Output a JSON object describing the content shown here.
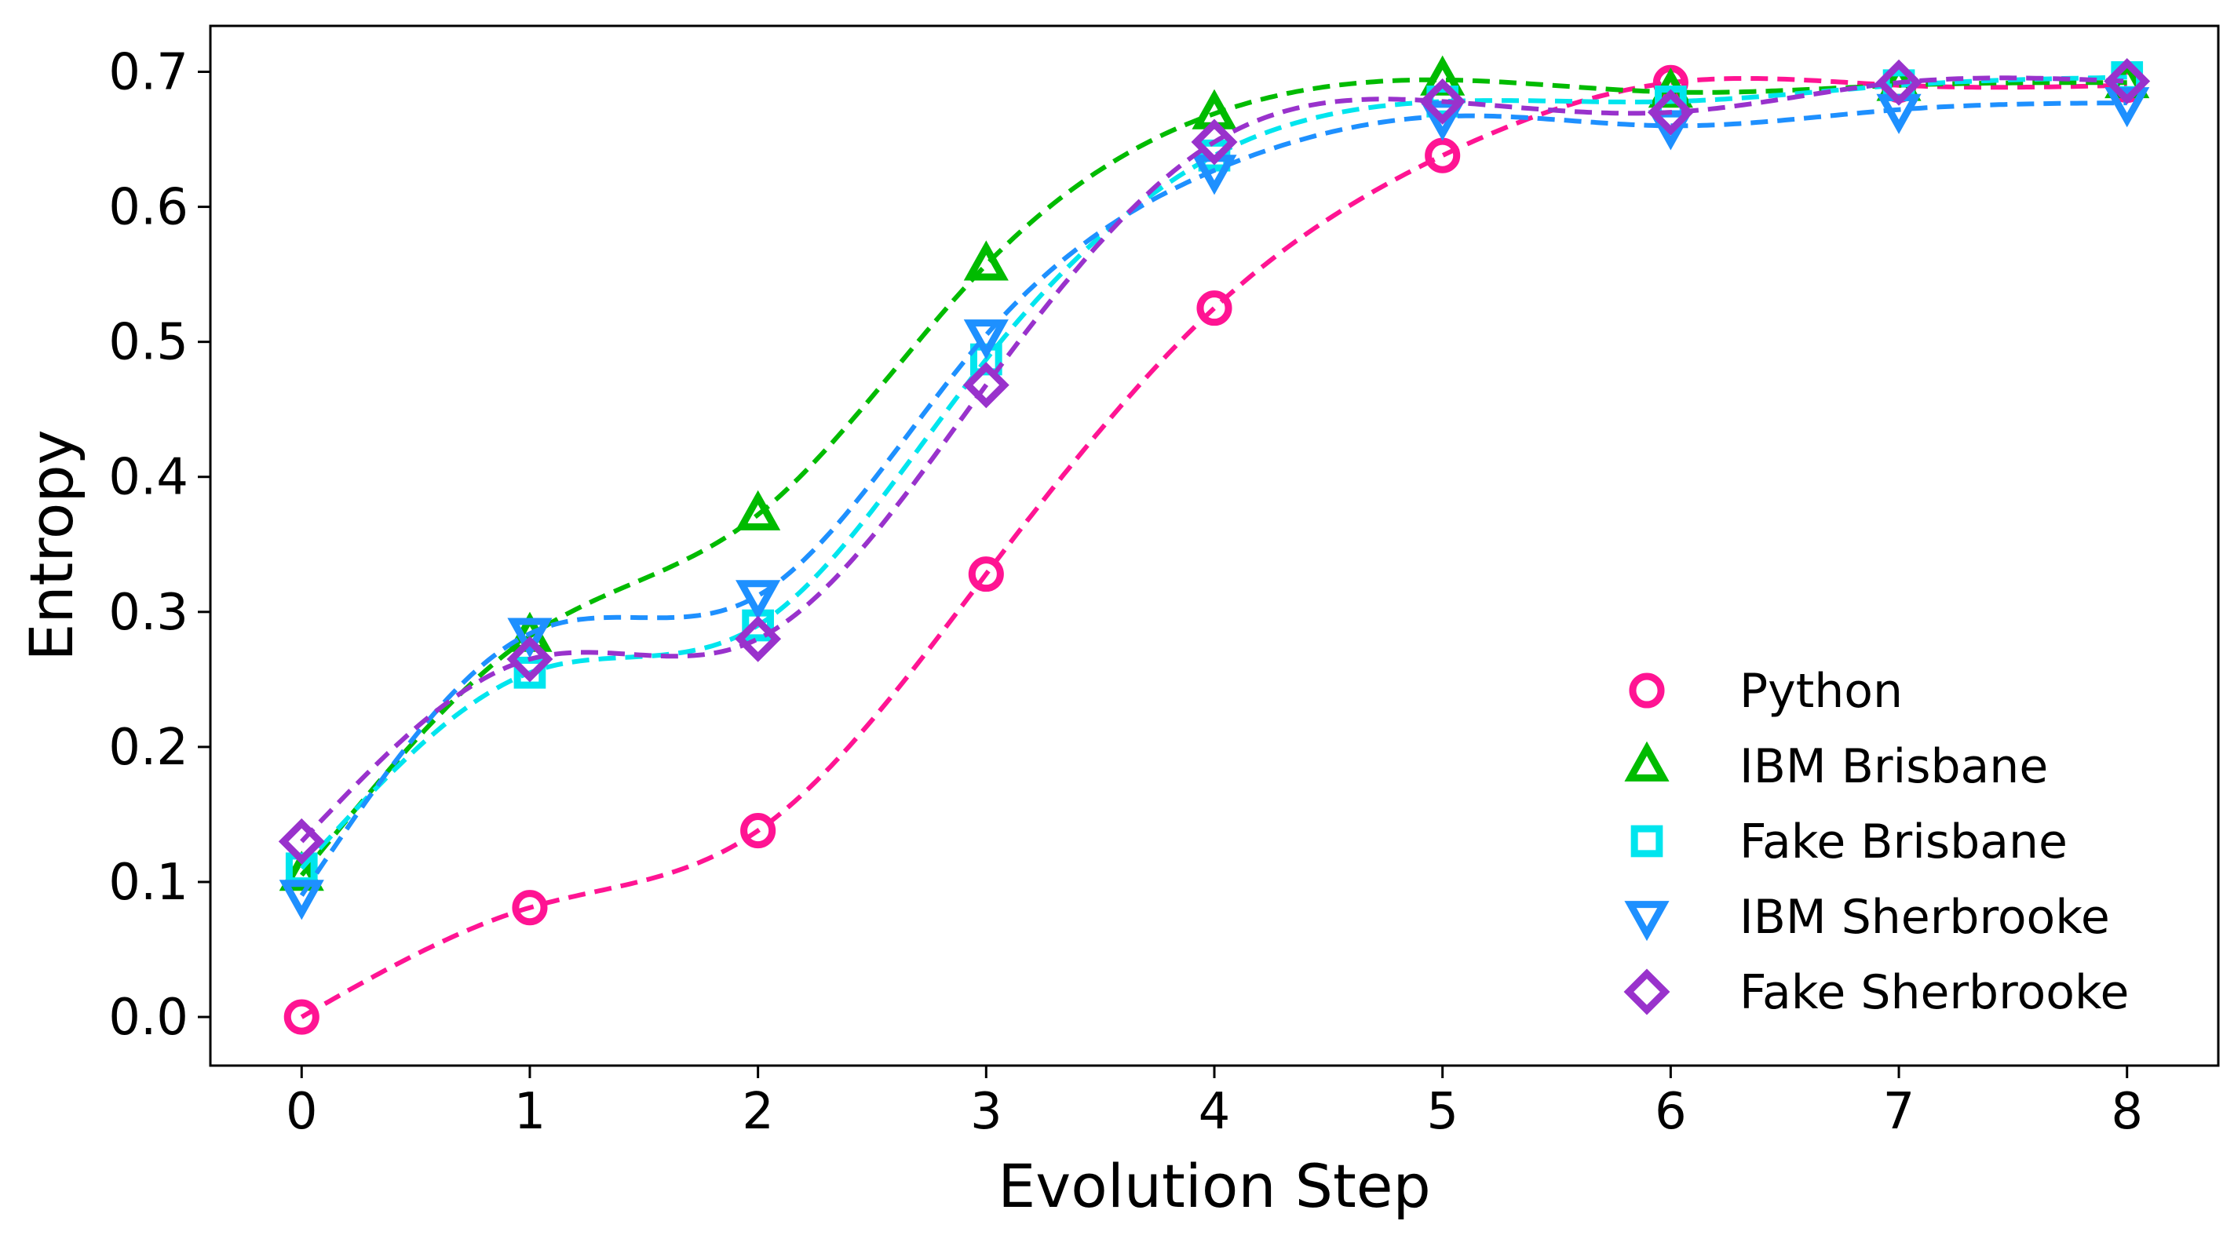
{
  "chart_data": {
    "type": "line",
    "title": "",
    "xlabel": "Evolution Step",
    "ylabel": "Entropy",
    "xlim": [
      -0.4,
      8.4
    ],
    "ylim": [
      -0.036,
      0.734
    ],
    "x_ticks": [
      0,
      1,
      2,
      3,
      4,
      5,
      6,
      7,
      8
    ],
    "x_tick_labels": [
      "0",
      "1",
      "2",
      "3",
      "4",
      "5",
      "6",
      "7",
      "8"
    ],
    "y_ticks": [
      0.0,
      0.1,
      0.2,
      0.3,
      0.4,
      0.5,
      0.6,
      0.7
    ],
    "y_tick_labels": [
      "0.0",
      "0.1",
      "0.2",
      "0.3",
      "0.4",
      "0.5",
      "0.6",
      "0.7"
    ],
    "grid": false,
    "legend_position": "bottom-right",
    "x": [
      0,
      1,
      2,
      3,
      4,
      5,
      6,
      7,
      8
    ],
    "series": [
      {
        "name": "Python",
        "marker": "circle",
        "color": "#ff1493",
        "values": [
          0.0,
          0.081,
          0.138,
          0.328,
          0.525,
          0.638,
          0.692,
          0.69,
          0.69
        ]
      },
      {
        "name": "IBM Brisbane",
        "marker": "triangle-up",
        "color": "#00bb00",
        "values": [
          0.105,
          0.282,
          0.372,
          0.557,
          0.669,
          0.694,
          0.685,
          0.69,
          0.692
        ]
      },
      {
        "name": "Fake Brisbane",
        "marker": "square",
        "color": "#00e5ee",
        "values": [
          0.11,
          0.255,
          0.29,
          0.487,
          0.638,
          0.678,
          0.678,
          0.69,
          0.696
        ]
      },
      {
        "name": "IBM Sherbrooke",
        "marker": "triangle-down",
        "color": "#1e90ff",
        "values": [
          0.09,
          0.284,
          0.312,
          0.505,
          0.627,
          0.667,
          0.66,
          0.672,
          0.677
        ]
      },
      {
        "name": "Fake Sherbrooke",
        "marker": "diamond",
        "color": "#9932cc",
        "values": [
          0.13,
          0.265,
          0.28,
          0.468,
          0.648,
          0.678,
          0.67,
          0.692,
          0.693
        ]
      }
    ]
  }
}
